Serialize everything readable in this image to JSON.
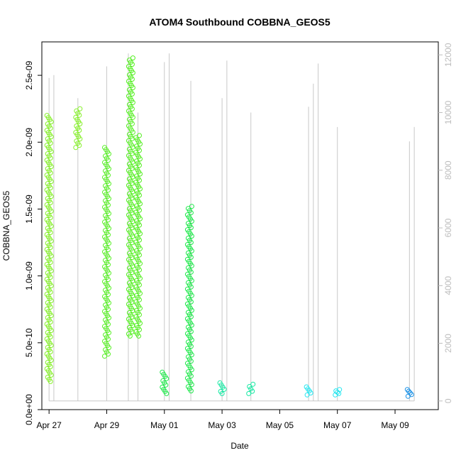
{
  "chart_data": {
    "type": "scatter",
    "title": "ATOM4 Southbound COBBNA_GEOS5",
    "xlabel": "Date",
    "ylabel": "COBBNA_GEOS5",
    "xlim": [
      "2016-04-26T18:00",
      "2016-05-10T12:00"
    ],
    "ylim": [
      0,
      2.75e-09
    ],
    "x_ticks": [
      {
        "date": "2016-04-27",
        "label": "Apr 27"
      },
      {
        "date": "2016-04-29",
        "label": "Apr 29"
      },
      {
        "date": "2016-05-01",
        "label": "May 01"
      },
      {
        "date": "2016-05-03",
        "label": "May 03"
      },
      {
        "date": "2016-05-05",
        "label": "May 05"
      },
      {
        "date": "2016-05-07",
        "label": "May 07"
      },
      {
        "date": "2016-05-09",
        "label": "May 09"
      }
    ],
    "y_ticks": [
      {
        "value": 0,
        "label": "0.0e+00"
      },
      {
        "value": 5e-10,
        "label": "5.0e-10"
      },
      {
        "value": 1e-09,
        "label": "1.0e-09"
      },
      {
        "value": 1.5e-09,
        "label": "1.5e-09"
      },
      {
        "value": 2e-09,
        "label": "2.0e-09"
      },
      {
        "value": 2.5e-09,
        "label": "2.5e-09"
      }
    ],
    "y2lim": [
      -300,
      12450
    ],
    "y2_ticks": [
      {
        "value": 0,
        "label": "0"
      },
      {
        "value": 2000,
        "label": "2000"
      },
      {
        "value": 4000,
        "label": "4000"
      },
      {
        "value": 6000,
        "label": "6000"
      },
      {
        "value": 8000,
        "label": "8000"
      },
      {
        "value": 10000,
        "label": "10000"
      },
      {
        "value": 12000,
        "label": "12000"
      }
    ],
    "grid": false,
    "legend": "none",
    "series": [
      {
        "color": "#86f02a",
        "segments": [
          {
            "x": "2016-04-27T00:00",
            "y_min": 2.1e-10,
            "y_max": 2.2e-09
          },
          {
            "x": "2016-04-28T00:00",
            "y_min": 1.96e-09,
            "y_max": 2.25e-09
          }
        ]
      },
      {
        "color": "#55ef22",
        "segments": [
          {
            "x": "2016-04-29T00:00",
            "y_min": 4e-10,
            "y_max": 1.96e-09
          },
          {
            "x": "2016-04-29T20:00",
            "y_min": 5.5e-10,
            "y_max": 2.63e-09
          },
          {
            "x": "2016-04-30T02:00",
            "y_min": 5.5e-10,
            "y_max": 2.05e-09
          }
        ]
      },
      {
        "color": "#1ee84a",
        "segments": [
          {
            "x": "2016-05-01T00:00",
            "y_min": 1.2e-10,
            "y_max": 2.8e-10
          },
          {
            "x": "2016-05-01T21:00",
            "y_min": 1.4e-10,
            "y_max": 1.52e-09
          }
        ]
      },
      {
        "color": "#14e8a2",
        "segments": [
          {
            "x": "2016-05-03T00:00",
            "y_min": 1.2e-10,
            "y_max": 2e-10
          },
          {
            "x": "2016-05-04T00:00",
            "y_min": 1.2e-10,
            "y_max": 1.9e-10
          }
        ]
      },
      {
        "color": "#22e6f0",
        "segments": [
          {
            "x": "2016-05-06T00:00",
            "y_min": 1.1e-10,
            "y_max": 1.7e-10
          },
          {
            "x": "2016-05-07T00:00",
            "y_min": 1.1e-10,
            "y_max": 1.5e-10
          }
        ]
      },
      {
        "color": "#1890e6",
        "segments": [
          {
            "x": "2016-05-09T12:00",
            "y_min": 1e-10,
            "y_max": 1.5e-10
          }
        ]
      }
    ],
    "secondary_series": {
      "color": "#c8c8c8",
      "axis": "right",
      "spikes": [
        {
          "x": "2016-04-27T00:00",
          "top": 11200
        },
        {
          "x": "2016-04-27T04:00",
          "top": 11300
        },
        {
          "x": "2016-04-28T00:00",
          "top": 10500
        },
        {
          "x": "2016-04-29T00:00",
          "top": 11600
        },
        {
          "x": "2016-04-29T18:00",
          "top": 12050
        },
        {
          "x": "2016-04-30T02:00",
          "top": 10000
        },
        {
          "x": "2016-05-01T00:00",
          "top": 11750
        },
        {
          "x": "2016-05-01T04:00",
          "top": 12050
        },
        {
          "x": "2016-05-01T22:00",
          "top": 11100
        },
        {
          "x": "2016-05-03T00:00",
          "top": 10500
        },
        {
          "x": "2016-05-03T04:00",
          "top": 11800
        },
        {
          "x": "2016-05-04T00:00",
          "top": 10000
        },
        {
          "x": "2016-05-06T00:00",
          "top": 10200
        },
        {
          "x": "2016-05-06T04:00",
          "top": 11000
        },
        {
          "x": "2016-05-06T08:00",
          "top": 11700
        },
        {
          "x": "2016-05-07T00:00",
          "top": 9500
        },
        {
          "x": "2016-05-09T12:00",
          "top": 9000
        },
        {
          "x": "2016-05-09T16:00",
          "top": 9500
        }
      ]
    }
  }
}
